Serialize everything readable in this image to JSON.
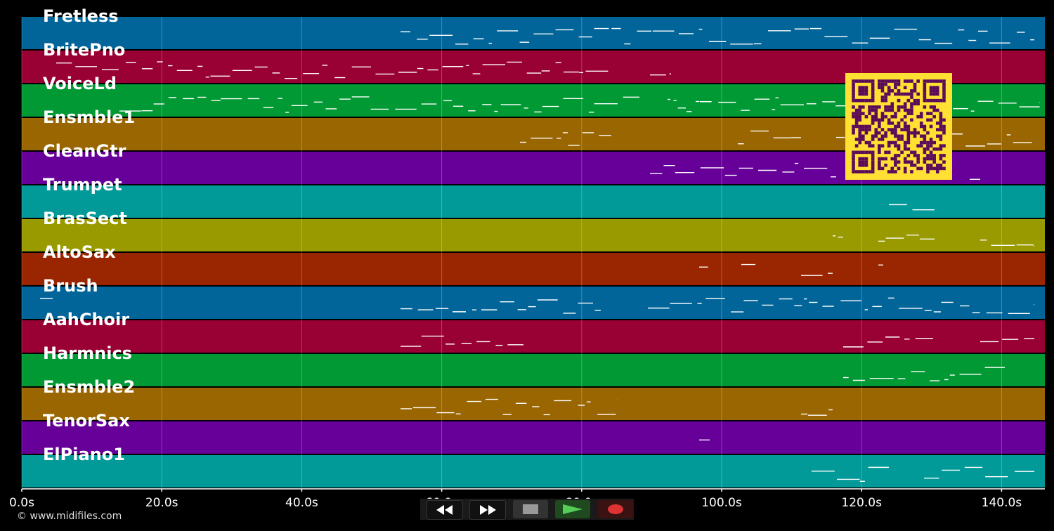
{
  "tracks": [
    {
      "label": "Fretless",
      "color": "#02659a"
    },
    {
      "label": "BritePno",
      "color": "#990033"
    },
    {
      "label": "VoiceLd",
      "color": "#009933"
    },
    {
      "label": "Ensmble1",
      "color": "#996601"
    },
    {
      "label": "CleanGtr",
      "color": "#660099"
    },
    {
      "label": "Trumpet",
      "color": "#029999"
    },
    {
      "label": "BrasSect",
      "color": "#999900"
    },
    {
      "label": "AltoSax",
      "color": "#992601"
    },
    {
      "label": "Brush",
      "color": "#02659a"
    },
    {
      "label": "AahChoir",
      "color": "#990033"
    },
    {
      "label": "Harmnics",
      "color": "#009933"
    },
    {
      "label": "Ensmble2",
      "color": "#996601"
    },
    {
      "label": "TenorSax",
      "color": "#660099"
    },
    {
      "label": "ElPiano1",
      "color": "#029999"
    }
  ],
  "timeline": {
    "ticks": [
      "0.0s",
      "20.0s",
      "40.0s",
      "60.0s",
      "80.0s",
      "100.0s",
      "120.0s",
      "140.0s"
    ],
    "duration_seconds": 146
  },
  "transport": {
    "rewind_icon": "rewind-icon",
    "forward_icon": "fast-forward-icon",
    "stop_icon": "stop-icon",
    "play_icon": "play-icon",
    "record_icon": "record-icon"
  },
  "qr": {
    "icon": "qr-code-icon",
    "color": "#ffe033",
    "dark": "#5a0a5a"
  },
  "copyright": "© www.midifiles.com"
}
